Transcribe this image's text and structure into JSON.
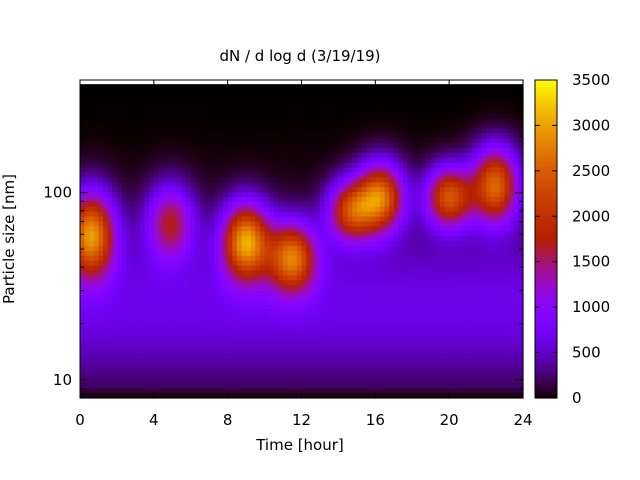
{
  "chart_data": {
    "type": "heatmap",
    "title": "dN / d log d (3/19/19)",
    "xlabel": "Time [hour]",
    "ylabel": "Particle size [nm]",
    "x_range": [
      0,
      24
    ],
    "x_ticks": [
      0,
      4,
      8,
      12,
      16,
      20,
      24
    ],
    "x_tick_labels": [
      "0",
      "4",
      "8",
      "12",
      "16",
      "20",
      "24"
    ],
    "y_scale": "log",
    "y_range": [
      8,
      400
    ],
    "y_ticks": [
      10,
      100
    ],
    "y_tick_labels": [
      "10",
      "100"
    ],
    "colorbar": {
      "range": [
        0,
        3500
      ],
      "ticks": [
        0,
        500,
        1000,
        1500,
        2000,
        2500,
        3000,
        3500
      ],
      "tick_labels": [
        "0",
        "500",
        "1000",
        "1500",
        "2000",
        "2500",
        "3000",
        "3500"
      ],
      "colormap": "gnuplot-pm3d"
    },
    "mode_events": [
      {
        "t": 0.6,
        "d": 60,
        "sd": 0.22,
        "amp": 2700
      },
      {
        "t": 4.9,
        "d": 70,
        "sd": 0.2,
        "amp": 1500
      },
      {
        "t": 9.0,
        "d": 55,
        "sd": 0.2,
        "amp": 2750
      },
      {
        "t": 11.5,
        "d": 45,
        "sd": 0.18,
        "amp": 2350
      },
      {
        "t": 14.7,
        "d": 80,
        "sd": 0.16,
        "amp": 2050
      },
      {
        "t": 16.3,
        "d": 95,
        "sd": 0.18,
        "amp": 2500
      },
      {
        "t": 20.0,
        "d": 95,
        "sd": 0.16,
        "amp": 2300
      },
      {
        "t": 22.5,
        "d": 110,
        "sd": 0.2,
        "amp": 2500
      }
    ]
  }
}
